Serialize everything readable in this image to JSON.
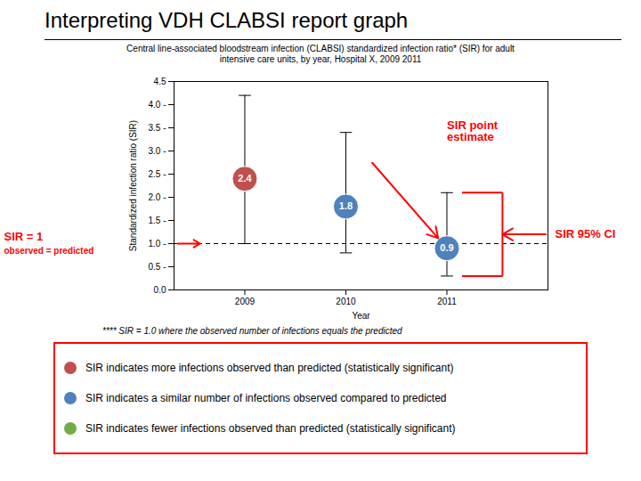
{
  "chart_data": {
    "type": "scatter",
    "title": "Interpreting VDH CLABSI report graph",
    "subtitle": "Central line-associated bloodstream infection (CLABSI) standardized infection ratio* (SIR) for adult\nintensive care units, by year, Hospital X, 2009 2011",
    "xlabel": "Year",
    "ylabel": "Standardized infection ratio (SIR)",
    "x": [
      2009,
      2010,
      2011
    ],
    "values": [
      2.4,
      1.8,
      0.9
    ],
    "ci_low": [
      1.0,
      0.8,
      0.3
    ],
    "ci_high": [
      4.2,
      3.4,
      2.1
    ],
    "colors": [
      "#c0504d",
      "#4f81bd",
      "#4f81bd"
    ],
    "data_labels": true,
    "xlim": [
      2008.3,
      2012.0
    ],
    "xticks": [
      2009,
      2010,
      2011
    ],
    "ylim": [
      0.0,
      4.5
    ],
    "yticks": [
      {
        "value": 0.0,
        "label": "0.0"
      },
      {
        "value": 0.5,
        "label": "0.5 -"
      },
      {
        "value": 1.0,
        "label": "1.0 -"
      },
      {
        "value": 1.5,
        "label": "1.5 -"
      },
      {
        "value": 2.0,
        "label": "2.0 -"
      },
      {
        "value": 2.5,
        "label": "2.5 -"
      },
      {
        "value": 3.0,
        "label": "3.0 -"
      },
      {
        "value": 3.5,
        "label": "3.5 -"
      },
      {
        "value": 4.0,
        "label": "4.0 -"
      },
      4.5
    ],
    "grid": false,
    "reference_y": 1.0,
    "annotations": [
      {
        "text": "SIR point\nestimate",
        "color": "red"
      },
      {
        "text": "SIR 95% CI",
        "color": "red"
      },
      {
        "text": "SIR = 1",
        "color": "red"
      },
      {
        "text": "observed = predicted",
        "color": "red"
      }
    ],
    "footnote": "**** SIR = 1.0 where the observed number of infections equals the predicted",
    "legend_entries": [
      {
        "color": "#c0504d",
        "text": "SIR indicates more infections observed than predicted (statistically significant)"
      },
      {
        "color": "#4f81bd",
        "text": "SIR indicates a similar number of infections observed compared to predicted"
      },
      {
        "color": "#70ad47",
        "text": "SIR indicates fewer infections observed than predicted (statistically significant)"
      }
    ]
  }
}
